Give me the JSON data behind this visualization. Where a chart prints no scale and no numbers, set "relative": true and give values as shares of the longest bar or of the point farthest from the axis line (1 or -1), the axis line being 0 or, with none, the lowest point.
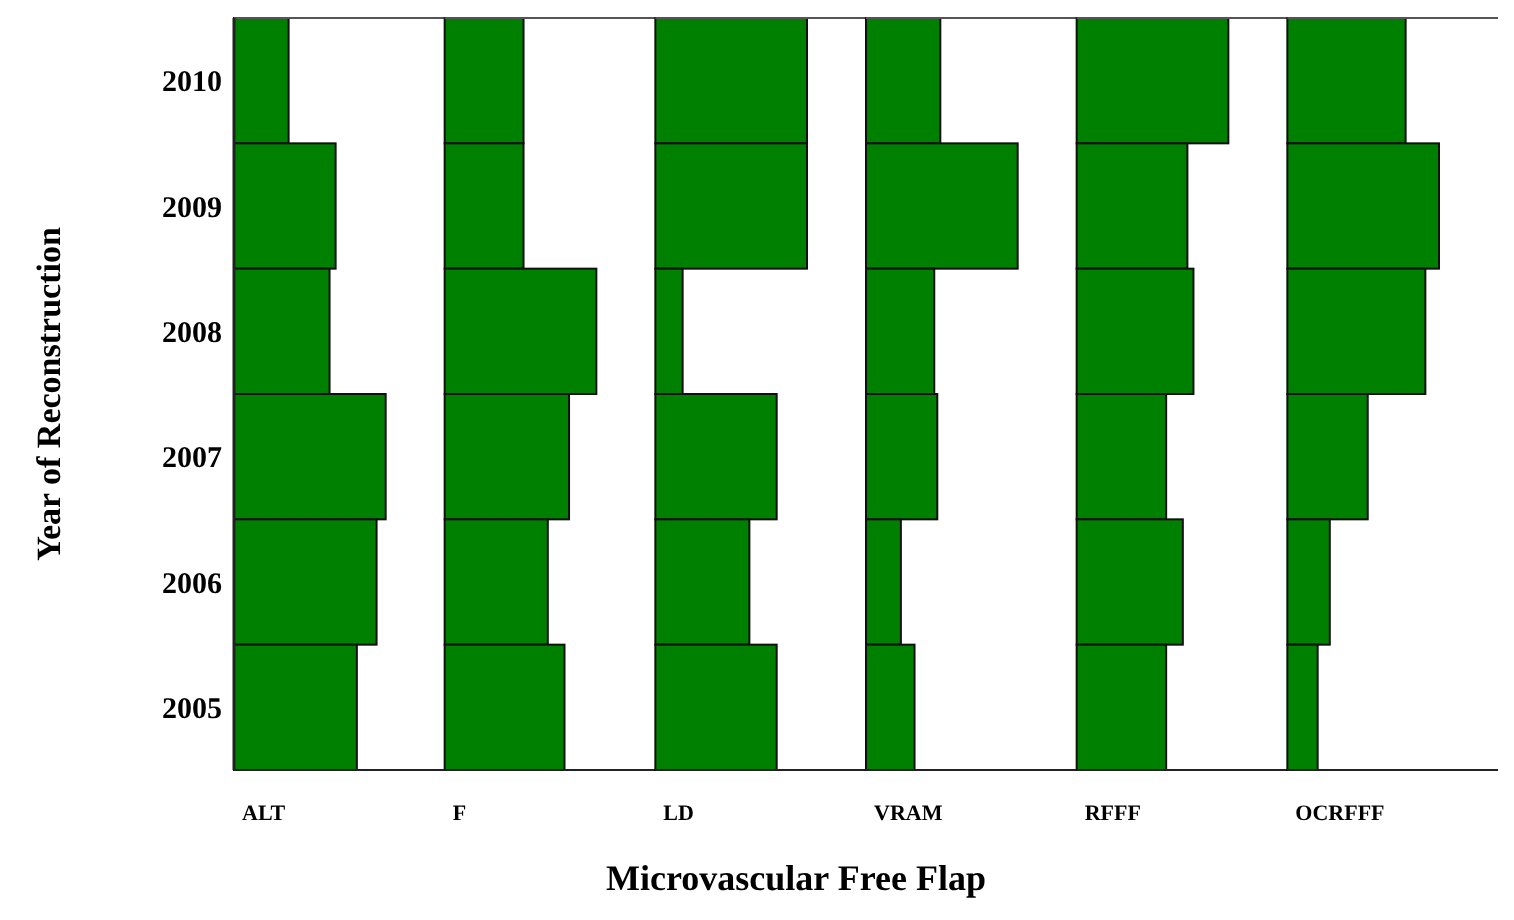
{
  "chart_data": [
    {
      "type": "bar",
      "orientation": "horizontal",
      "relative": true,
      "tick_labels": "y",
      "ylabel": "Year of Reconstruction",
      "xlabel": "ALT",
      "annotations": [
        "Microvascular Free Flap"
      ],
      "categories": [
        "2010",
        "2009",
        "2008",
        "2007",
        "2006",
        "2005"
      ],
      "color": "#008000",
      "values": [
        0.36,
        0.67,
        0.63,
        1,
        0.94,
        0.81
      ]
    },
    {
      "type": "bar",
      "orientation": "horizontal",
      "relative": true,
      "tick_labels": false,
      "xlabel": "F",
      "categories": [
        "2010",
        "2009",
        "2008",
        "2007",
        "2006",
        "2005"
      ],
      "color": "#008000",
      "values": [
        0.52,
        0.52,
        1,
        0.82,
        0.68,
        0.79
      ]
    },
    {
      "type": "bar",
      "orientation": "horizontal",
      "relative": true,
      "tick_labels": false,
      "xlabel": "LD",
      "categories": [
        "2010",
        "2009",
        "2008",
        "2007",
        "2006",
        "2005"
      ],
      "color": "#008000",
      "values": [
        1,
        1,
        0.18,
        0.8,
        0.62,
        0.8
      ]
    },
    {
      "type": "bar",
      "orientation": "horizontal",
      "relative": true,
      "tick_labels": false,
      "xlabel": "VRAM",
      "categories": [
        "2010",
        "2009",
        "2008",
        "2007",
        "2006",
        "2005"
      ],
      "color": "#008000",
      "values": [
        0.49,
        1,
        0.45,
        0.47,
        0.23,
        0.32
      ]
    },
    {
      "type": "bar",
      "orientation": "horizontal",
      "relative": true,
      "tick_labels": false,
      "xlabel": "RFFF",
      "categories": [
        "2010",
        "2009",
        "2008",
        "2007",
        "2006",
        "2005"
      ],
      "color": "#008000",
      "values": [
        1,
        0.73,
        0.77,
        0.59,
        0.7,
        0.59
      ]
    },
    {
      "type": "bar",
      "orientation": "horizontal",
      "relative": true,
      "tick_labels": false,
      "xlabel": "OCRFFF",
      "categories": [
        "2010",
        "2009",
        "2008",
        "2007",
        "2006",
        "2005"
      ],
      "color": "#008000",
      "values": [
        0.78,
        1,
        0.91,
        0.53,
        0.28,
        0.2
      ]
    }
  ]
}
